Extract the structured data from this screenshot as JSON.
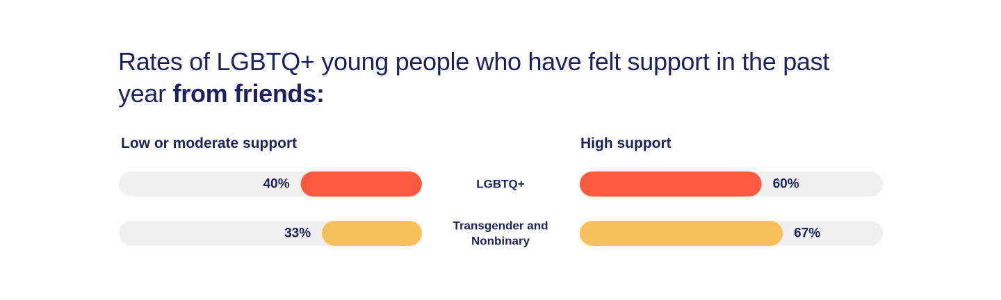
{
  "title": {
    "normal": "Rates of LGBTQ+ young people who have felt support in the past year ",
    "bold": "from friends:"
  },
  "colors": {
    "lgbtq": "#ff5a3d",
    "trans_nonbinary": "#f8c05a",
    "track": "#f0f0f0",
    "text": "#1c2160"
  },
  "chart_data": {
    "type": "bar",
    "orientation": "horizontal",
    "categories": [
      "LGBTQ+",
      "Transgender and Nonbinary"
    ],
    "category_lines": [
      [
        "LGBTQ+"
      ],
      [
        "Transgender and",
        "Nonbinary"
      ]
    ],
    "series": [
      {
        "name": "Low or moderate support",
        "values": [
          40,
          33
        ],
        "labels": [
          "40%",
          "33%"
        ]
      },
      {
        "name": "High support",
        "values": [
          60,
          67
        ],
        "labels": [
          "60%",
          "67%"
        ]
      }
    ],
    "xlim": [
      0,
      100
    ],
    "unit": "%",
    "grid": false
  }
}
